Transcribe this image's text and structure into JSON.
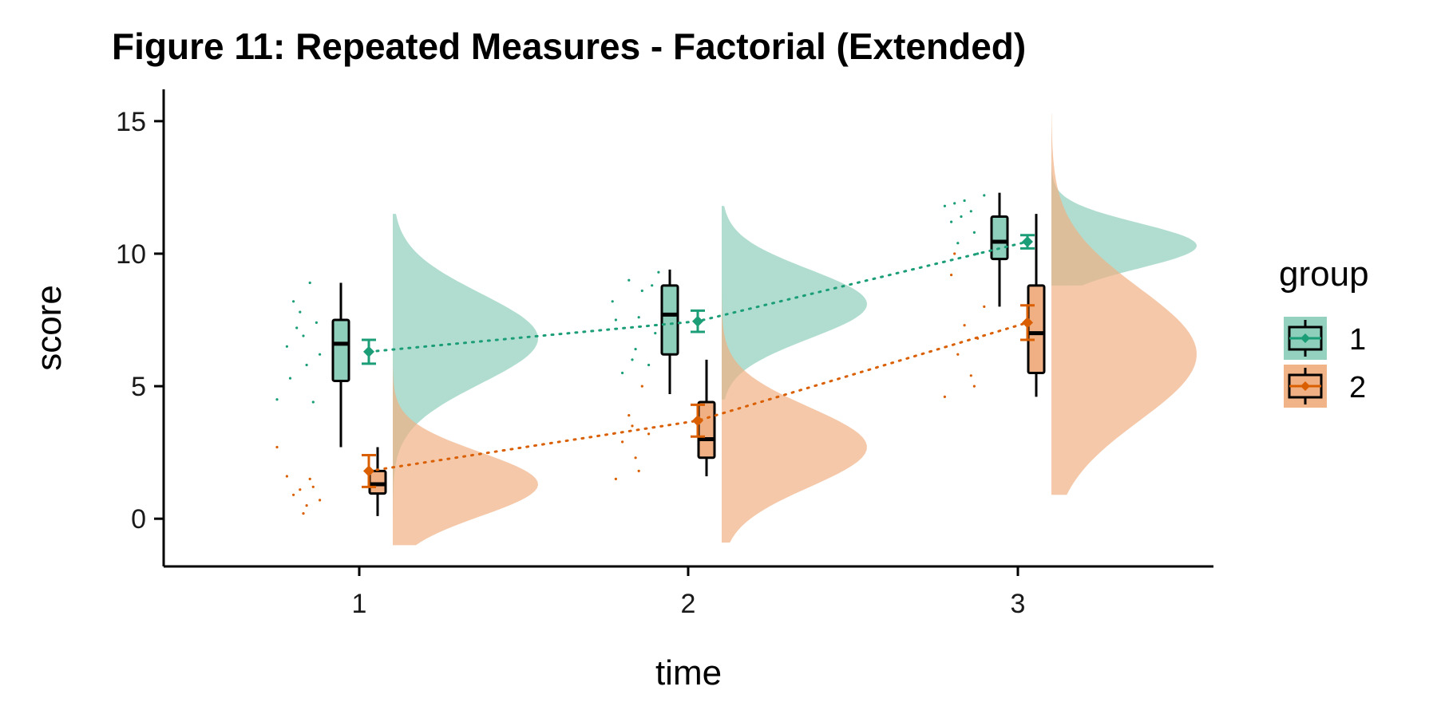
{
  "chart_data": {
    "type": "raincloud",
    "title": "Figure 11: Repeated Measures - Factorial (Extended)",
    "xlabel": "time",
    "ylabel": "score",
    "categories": [
      "1",
      "2",
      "3"
    ],
    "ylim": [
      -1.8,
      16.2
    ],
    "yticks": [
      0,
      5,
      10,
      15
    ],
    "yticklabels": [
      "0",
      "5",
      "10",
      "15"
    ],
    "grid": false,
    "legend": {
      "title": "group",
      "position": "right"
    },
    "series": [
      {
        "name": "1",
        "color": "#1B9E77",
        "fill": "#8ECFBB",
        "means": [
          6.3,
          7.45,
          10.45
        ],
        "se": [
          0.45,
          0.4,
          0.25
        ],
        "box": [
          {
            "min": 2.7,
            "q1": 5.2,
            "median": 6.6,
            "q3": 7.5,
            "max": 8.9
          },
          {
            "min": 4.7,
            "q1": 6.2,
            "median": 7.7,
            "q3": 8.8,
            "max": 9.4
          },
          {
            "min": 8.0,
            "q1": 9.8,
            "median": 10.45,
            "q3": 11.4,
            "max": 12.3
          }
        ],
        "density": [
          {
            "min": 0.2,
            "max": 11.5,
            "peak": 6.8,
            "spread": 1.7
          },
          {
            "min": 4.5,
            "max": 11.8,
            "peak": 8.1,
            "spread": 1.3
          },
          {
            "min": 8.8,
            "max": 13.9,
            "peak": 10.3,
            "spread": 0.85
          }
        ],
        "points": [
          [
            [
              0.75,
              4.5
            ],
            [
              0.78,
              6.5
            ],
            [
              0.8,
              8.2
            ],
            [
              0.82,
              7.8
            ],
            [
              0.84,
              5.8
            ],
            [
              0.86,
              4.4
            ],
            [
              0.87,
              7.4
            ],
            [
              0.88,
              6.2
            ],
            [
              0.85,
              8.9
            ],
            [
              0.79,
              5.3
            ],
            [
              0.83,
              6.9
            ],
            [
              0.81,
              7.2
            ]
          ],
          [
            [
              1.77,
              8.2
            ],
            [
              1.8,
              5.5
            ],
            [
              1.82,
              9.0
            ],
            [
              1.84,
              6.4
            ],
            [
              1.86,
              8.6
            ],
            [
              1.88,
              5.8
            ],
            [
              1.9,
              7.0
            ],
            [
              1.91,
              9.3
            ],
            [
              1.78,
              7.5
            ],
            [
              1.85,
              7.6
            ],
            [
              1.83,
              6.0
            ],
            [
              1.89,
              8.8
            ]
          ],
          [
            [
              2.78,
              11.8
            ],
            [
              2.8,
              11.2
            ],
            [
              2.82,
              10.4
            ],
            [
              2.84,
              12.0
            ],
            [
              2.86,
              11.6
            ],
            [
              2.88,
              10.0
            ],
            [
              2.9,
              12.2
            ],
            [
              2.83,
              11.4
            ],
            [
              2.87,
              10.8
            ],
            [
              2.81,
              11.9
            ]
          ]
        ]
      },
      {
        "name": "2",
        "color": "#D95F02",
        "fill": "#F0B083",
        "means": [
          1.8,
          3.7,
          7.4
        ],
        "se": [
          0.6,
          0.6,
          0.65
        ],
        "box": [
          {
            "min": 0.1,
            "q1": 0.95,
            "median": 1.3,
            "q3": 1.8,
            "max": 2.7
          },
          {
            "min": 1.6,
            "q1": 2.3,
            "median": 3.0,
            "q3": 4.4,
            "max": 6.0
          },
          {
            "min": 4.6,
            "q1": 5.5,
            "median": 7.0,
            "q3": 8.8,
            "max": 11.5
          }
        ],
        "density": [
          {
            "min": -1.0,
            "max": 8.6,
            "peak": 1.3,
            "spread": 1.2
          },
          {
            "min": -0.9,
            "max": 11.3,
            "peak": 2.7,
            "spread": 1.5
          },
          {
            "min": 0.9,
            "max": 15.3,
            "peak": 6.2,
            "spread": 2.5
          }
        ],
        "points": [
          [
            [
              0.75,
              2.7
            ],
            [
              0.78,
              1.6
            ],
            [
              0.8,
              0.9
            ],
            [
              0.82,
              1.1
            ],
            [
              0.84,
              0.5
            ],
            [
              0.86,
              1.2
            ],
            [
              0.88,
              0.7
            ],
            [
              0.83,
              0.2
            ],
            [
              0.85,
              1.5
            ]
          ],
          [
            [
              1.78,
              1.5
            ],
            [
              1.8,
              2.9
            ],
            [
              1.82,
              3.9
            ],
            [
              1.84,
              2.3
            ],
            [
              1.86,
              5.0
            ],
            [
              1.88,
              3.2
            ],
            [
              1.85,
              1.8
            ],
            [
              1.83,
              3.5
            ]
          ],
          [
            [
              2.78,
              4.6
            ],
            [
              2.8,
              9.2
            ],
            [
              2.82,
              6.2
            ],
            [
              2.84,
              7.3
            ],
            [
              2.86,
              5.4
            ],
            [
              2.88,
              6.8
            ],
            [
              2.9,
              8.0
            ],
            [
              2.81,
              10.0
            ],
            [
              2.87,
              5.0
            ]
          ]
        ]
      }
    ]
  }
}
